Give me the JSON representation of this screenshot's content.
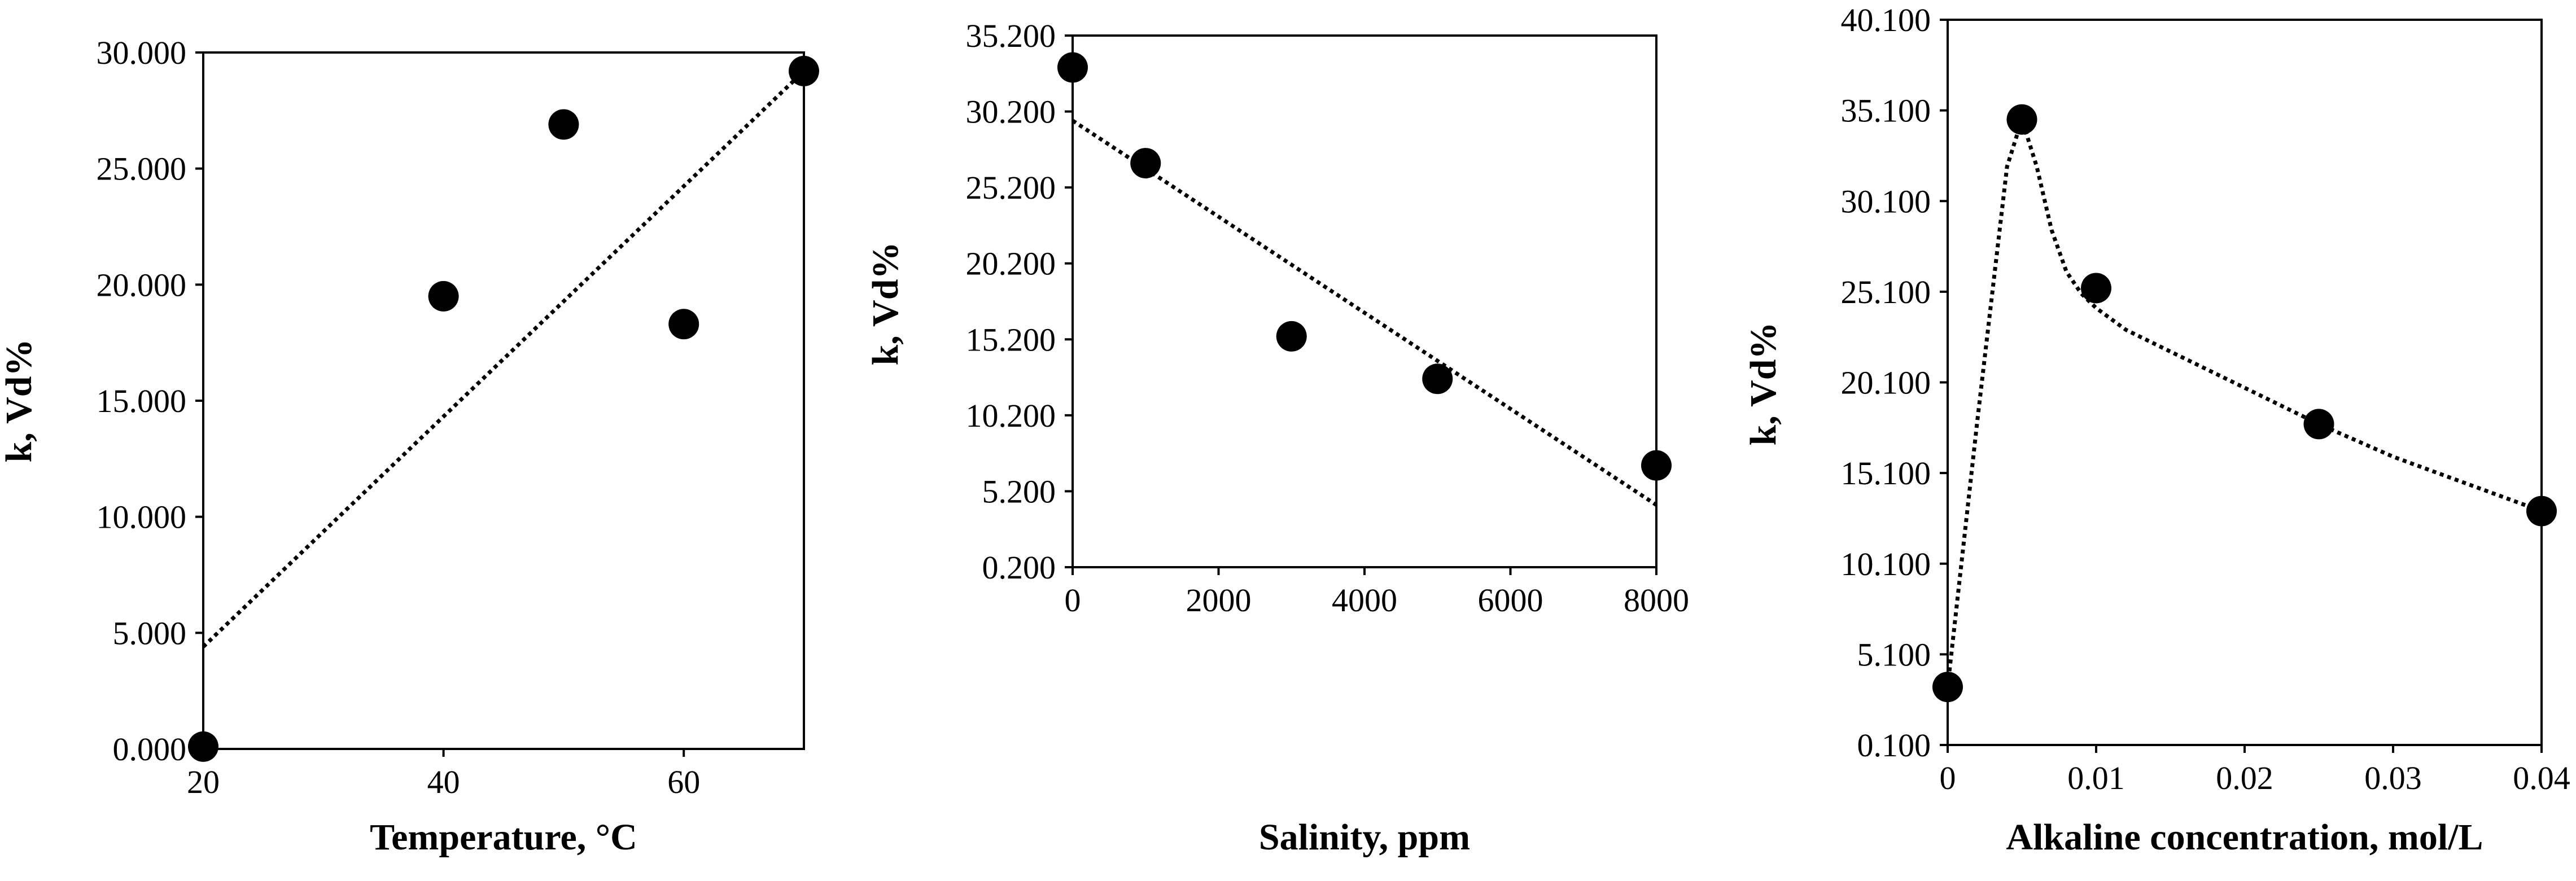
{
  "chart_data": [
    {
      "type": "scatter",
      "title": "",
      "xlabel": "Temperature,  °C",
      "ylabel": "k, Vd%",
      "xlim": [
        20,
        70
      ],
      "ylim": [
        0,
        30
      ],
      "x_ticks": [
        20,
        40,
        60
      ],
      "y_ticks": [
        0,
        5,
        10,
        15,
        20,
        25,
        30
      ],
      "x_tick_labels": [
        "20",
        "40",
        "60"
      ],
      "y_tick_labels": [
        "0.000",
        "5.000",
        "10.000",
        "15.000",
        "20.000",
        "25.000",
        "30.000"
      ],
      "grid": false,
      "legend": "none",
      "series": [
        {
          "x": [
            20,
            40,
            50,
            60,
            70
          ],
          "y": [
            0.1,
            19.5,
            26.9,
            18.3,
            29.2
          ]
        }
      ],
      "trendline": {
        "style": "dotted",
        "kind": "linear",
        "x": [
          20,
          70
        ],
        "y": [
          4.4,
          29.2
        ]
      }
    },
    {
      "type": "scatter",
      "title": "",
      "xlabel": "Salinity, ppm",
      "ylabel": "k, Vd%",
      "xlim": [
        0,
        8000
      ],
      "ylim": [
        0.2,
        35.2
      ],
      "x_ticks": [
        0,
        2000,
        4000,
        6000,
        8000
      ],
      "y_ticks": [
        0.2,
        5.2,
        10.2,
        15.2,
        20.2,
        25.2,
        30.2,
        35.2
      ],
      "x_tick_labels": [
        "0",
        "2000",
        "4000",
        "6000",
        "8000"
      ],
      "y_tick_labels": [
        "0.200",
        "5.200",
        "10.200",
        "15.200",
        "20.200",
        "25.200",
        "30.200",
        "35.200"
      ],
      "grid": false,
      "legend": "none",
      "series": [
        {
          "x": [
            0,
            1000,
            3000,
            5000,
            8000
          ],
          "y": [
            33.1,
            26.8,
            15.4,
            12.6,
            6.9
          ]
        }
      ],
      "trendline": {
        "style": "dotted",
        "kind": "linear",
        "x": [
          0,
          8000
        ],
        "y": [
          29.6,
          4.3
        ]
      }
    },
    {
      "type": "scatter",
      "title": "",
      "xlabel": "Alkaline concentration, mol/L",
      "ylabel": "k, Vd%",
      "xlim": [
        0,
        0.04
      ],
      "ylim": [
        0.1,
        40.1
      ],
      "x_ticks": [
        0,
        0.01,
        0.02,
        0.03,
        0.04
      ],
      "y_ticks": [
        0.1,
        5.1,
        10.1,
        15.1,
        20.1,
        25.1,
        30.1,
        35.1,
        40.1
      ],
      "x_tick_labels": [
        "0",
        "0.01",
        "0.02",
        "0.03",
        "0.04"
      ],
      "y_tick_labels": [
        "0.100",
        "5.100",
        "10.100",
        "15.100",
        "20.100",
        "25.100",
        "30.100",
        "35.100",
        "40.100"
      ],
      "grid": false,
      "legend": "none",
      "series": [
        {
          "x": [
            0,
            0.005,
            0.01,
            0.025,
            0.04
          ],
          "y": [
            3.3,
            34.6,
            25.3,
            17.8,
            13.0
          ]
        }
      ],
      "trendline": {
        "style": "dotted",
        "kind": "smooth",
        "x": [
          0,
          0.002,
          0.004,
          0.005,
          0.006,
          0.007,
          0.008,
          0.009,
          0.01,
          0.012,
          0.015,
          0.02,
          0.025,
          0.03,
          0.035,
          0.04
        ],
        "y": [
          3.3,
          18,
          32,
          34.6,
          32,
          28.5,
          26.2,
          25.0,
          24.2,
          23.0,
          21.8,
          19.8,
          17.8,
          16.0,
          14.5,
          13.0
        ]
      }
    }
  ]
}
